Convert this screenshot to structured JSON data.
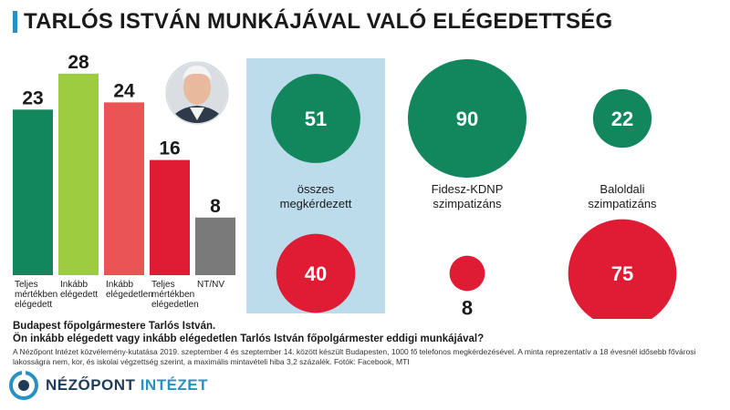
{
  "title": "TARLÓS ISTVÁN MUNKÁJÁVAL VALÓ ELÉGEDETTSÉG",
  "caption": {
    "line1": "Budapest főpolgármestere Tarlós István.",
    "line2": "Ön inkább elégedett vagy inkább elégedetlen Tarlós István főpolgármester eddigi munkájával?"
  },
  "note": "A Nézőpont Intézet közvélemény-kutatása 2019. szeptember 4 és szeptember 14. között készült Budapesten, 1000 fő telefonos megkérdezésével. A minta reprezentatív a 18 évesnél idősebb fővárosi lakosságra nem, kor, és iskolai végzettség szerint, a maximális mintavételi hiba 3,2 százalék. Fotók: Facebook, MTI",
  "logo": {
    "name": "NÉZŐPONT",
    "accent": "INTÉZET"
  },
  "colors": {
    "green": "#12865c",
    "lightgreen": "#9ccd3e",
    "salmon": "#ea5454",
    "red": "#e01c35",
    "gray": "#7a7a7a",
    "highlight": "#bcdcec"
  },
  "chart_data": [
    {
      "type": "bar",
      "categories": [
        "Teljes mértékben elégedett",
        "Inkább elégedett",
        "Inkább elégedetlen",
        "Teljes mértékben elégedetlen",
        "NT/NV"
      ],
      "category_lines": [
        [
          "Teljes",
          "mértékben",
          "elégedett"
        ],
        [
          "Inkább",
          "elégedett"
        ],
        [
          "Inkább",
          "elégedetlen"
        ],
        [
          "Teljes",
          "mértékben",
          "elégedetlen"
        ],
        [
          "NT/NV"
        ]
      ],
      "values": [
        23,
        28,
        24,
        16,
        8
      ],
      "colors": [
        "#12865c",
        "#9ccd3e",
        "#ea5454",
        "#e01c35",
        "#7a7a7a"
      ],
      "ylim": [
        0,
        30
      ]
    },
    {
      "type": "bubble",
      "groups": [
        {
          "name": "összes megkérdezett",
          "lines": [
            "összes",
            "megkérdezett"
          ],
          "satisfied": 51,
          "dissatisfied": 40,
          "highlight": true
        },
        {
          "name": "Fidesz-KDNP szimpatizáns",
          "lines": [
            "Fidesz-KDNP",
            "szimpatizáns"
          ],
          "satisfied": 90,
          "dissatisfied": 8,
          "highlight": false
        },
        {
          "name": "Baloldali szimpatizáns",
          "lines": [
            "Baloldali",
            "szimpatizáns"
          ],
          "satisfied": 22,
          "dissatisfied": 75,
          "highlight": false
        }
      ],
      "satisfied_color": "#12865c",
      "dissatisfied_color": "#e01c35"
    }
  ]
}
